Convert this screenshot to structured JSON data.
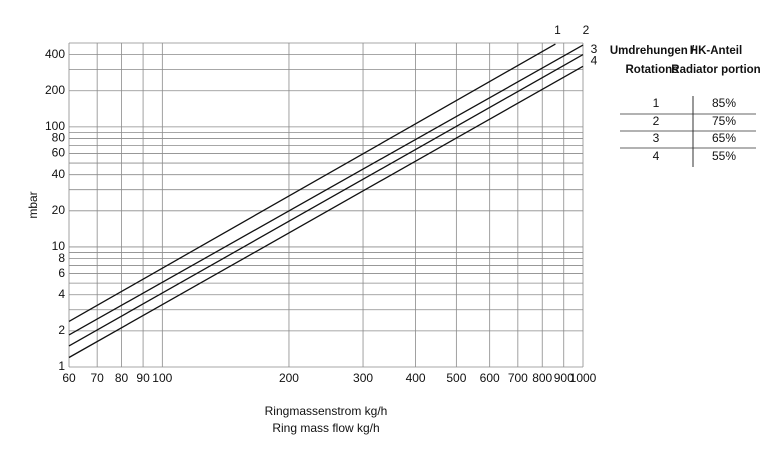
{
  "chart_data": {
    "type": "line",
    "y_label": "mbar",
    "x_label": [
      "Ringmassenstrom  kg/h",
      "Ring mass flow kg/h"
    ],
    "log_x": true,
    "log_y": true,
    "grid": true,
    "xlim": [
      60,
      1000
    ],
    "xticks": [
      60,
      70,
      80,
      90,
      100,
      200,
      300,
      400,
      500,
      600,
      700,
      800,
      900,
      1000
    ],
    "ylim": [
      1,
      500
    ],
    "yticks": [
      1,
      2,
      4,
      6,
      8,
      10,
      20,
      40,
      60,
      80,
      100,
      200,
      400
    ],
    "y_minor_gridlines": [
      3,
      5,
      7,
      9,
      30,
      50,
      70,
      90,
      300,
      500
    ],
    "series": [
      {
        "name": "1",
        "color": "#111111",
        "x": [
          60,
          860
        ],
        "values": [
          2.4,
          490
        ]
      },
      {
        "name": "2",
        "color": "#111111",
        "x": [
          60,
          1000
        ],
        "values": [
          1.85,
          480
        ]
      },
      {
        "name": "3",
        "color": "#111111",
        "x": [
          60,
          1000
        ],
        "values": [
          1.5,
          400
        ]
      },
      {
        "name": "4",
        "color": "#111111",
        "x": [
          60,
          1000
        ],
        "values": [
          1.2,
          320
        ]
      }
    ]
  },
  "table": {
    "headers": [
      [
        "Umdrehungen /",
        "Rotations"
      ],
      [
        "HK-Anteil",
        "Radiator portion"
      ]
    ],
    "rows": [
      [
        "1",
        "85%"
      ],
      [
        "2",
        "75%"
      ],
      [
        "3",
        "65%"
      ],
      [
        "4",
        "55%"
      ]
    ]
  }
}
